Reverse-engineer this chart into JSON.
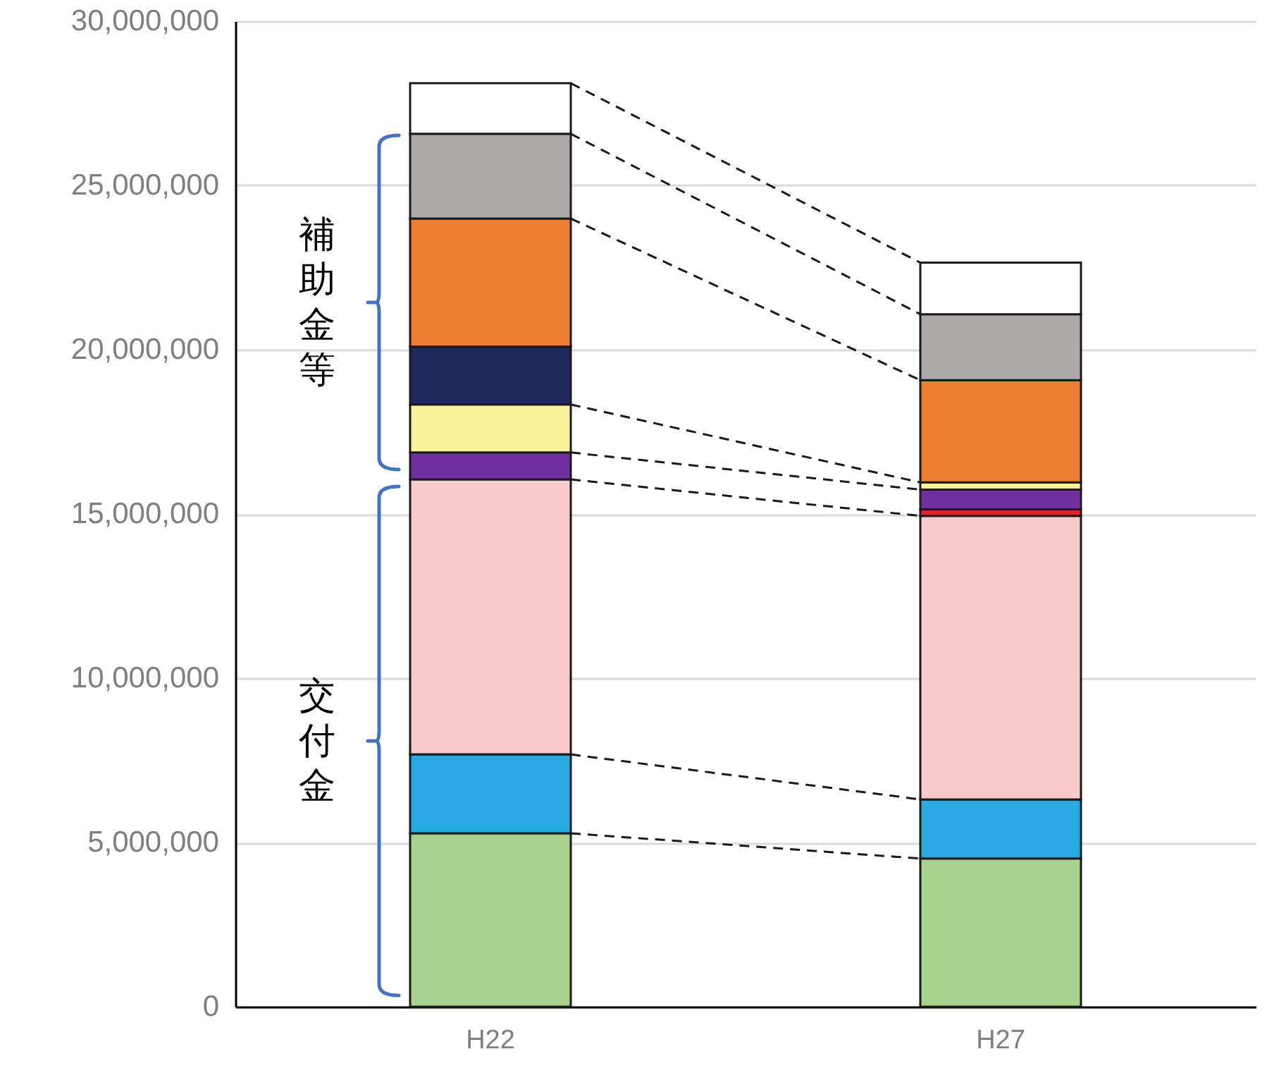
{
  "chart_data": {
    "type": "bar",
    "stacked": true,
    "categories": [
      "H22",
      "H27"
    ],
    "series": [
      {
        "color": "#a9d18e",
        "values": [
          5280000,
          4510000
        ]
      },
      {
        "color": "#29abe2",
        "values": [
          2400000,
          1800000
        ]
      },
      {
        "color": "#f8cbcb",
        "values": [
          8370000,
          8630000
        ]
      },
      {
        "color": "#e8202a",
        "values": [
          null,
          200000
        ]
      },
      {
        "color": "#7030a0",
        "values": [
          820000,
          600000
        ]
      },
      {
        "color": "#fbf49c",
        "values": [
          1460000,
          220000
        ]
      },
      {
        "color": "#1f285a",
        "values": [
          1760000,
          null
        ]
      },
      {
        "color": "#ed7d31",
        "values": [
          3900000,
          3110000
        ]
      },
      {
        "color": "#aeaaaa",
        "values": [
          2580000,
          2010000
        ]
      },
      {
        "color": "#ffffff",
        "values": [
          1540000,
          1570000
        ]
      }
    ],
    "ylim": [
      0,
      30000000
    ],
    "yticks": [
      {
        "value": 0,
        "label": "0"
      },
      {
        "value": 5000000,
        "label": "5,000,000"
      },
      {
        "value": 10000000,
        "label": "10,000,000"
      },
      {
        "value": 15000000,
        "label": "15,000,000"
      },
      {
        "value": 20000000,
        "label": "20,000,000"
      },
      {
        "value": 25000000,
        "label": "25,000,000"
      },
      {
        "value": 30000000,
        "label": "30,000,000"
      }
    ],
    "grid": "y",
    "annotations": [
      "補助金等",
      "交付金"
    ]
  }
}
